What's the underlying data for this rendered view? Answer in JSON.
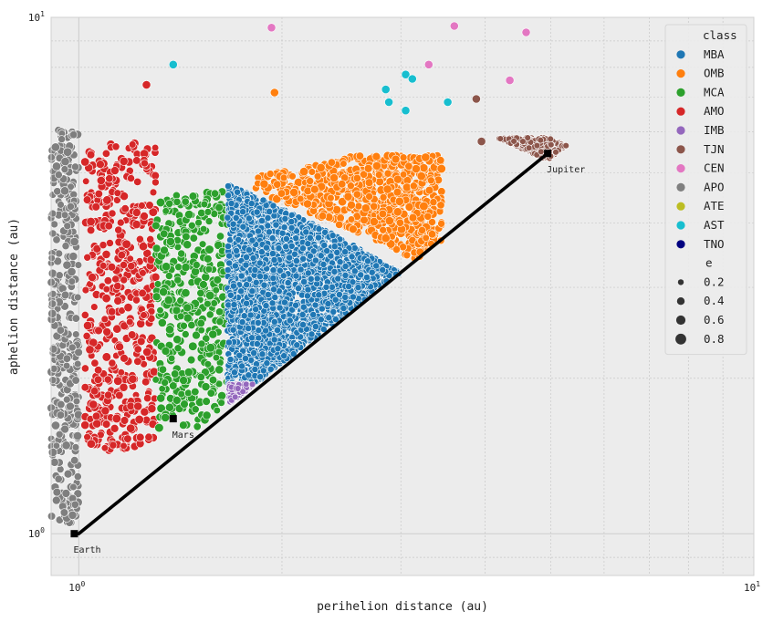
{
  "chart_data": {
    "type": "scatter",
    "xlabel": "perihelion distance (au)",
    "ylabel": "aphelion distance (au)",
    "xscale": "log",
    "yscale": "log",
    "xlim": [
      0.91,
      10
    ],
    "ylim": [
      0.83,
      10
    ],
    "grid": true,
    "background": "#ececec",
    "x_ticks": [
      {
        "value": 1,
        "base": "10",
        "exp": "0"
      },
      {
        "value": 10,
        "base": "10",
        "exp": "1"
      }
    ],
    "y_ticks": [
      {
        "value": 1,
        "base": "10",
        "exp": "0"
      },
      {
        "value": 10,
        "base": "10",
        "exp": "1"
      }
    ],
    "line": {
      "points": [
        [
          1.0,
          1.0
        ],
        [
          4.95,
          5.45
        ]
      ],
      "color": "#000000"
    },
    "annotations": [
      {
        "label": "Earth",
        "x": 0.985,
        "y": 1.0
      },
      {
        "label": "Mars",
        "x": 1.38,
        "y": 1.67
      },
      {
        "label": "Jupiter",
        "x": 4.95,
        "y": 5.45
      }
    ],
    "legend": {
      "placement": "upper right",
      "hue_title": "class",
      "classes": [
        {
          "name": "MBA",
          "color": "#1f77b4"
        },
        {
          "name": "OMB",
          "color": "#ff7f0e"
        },
        {
          "name": "MCA",
          "color": "#2ca02c"
        },
        {
          "name": "AMO",
          "color": "#d62728"
        },
        {
          "name": "IMB",
          "color": "#9467bd"
        },
        {
          "name": "TJN",
          "color": "#8c564b"
        },
        {
          "name": "CEN",
          "color": "#e377c2"
        },
        {
          "name": "APO",
          "color": "#7f7f7f"
        },
        {
          "name": "ATE",
          "color": "#bcbd22"
        },
        {
          "name": "AST",
          "color": "#17becf"
        },
        {
          "name": "TNO",
          "color": "#000080"
        }
      ],
      "size_title": "e",
      "sizes": [
        "0.2",
        "0.4",
        "0.6",
        "0.8"
      ]
    },
    "regions": [
      {
        "class": "MBA",
        "q": [
          1.66,
          3.05
        ],
        "Q": [
          1.83,
          4.75
        ],
        "count": 2600
      },
      {
        "class": "OMB",
        "q": [
          1.82,
          3.45
        ],
        "Q": [
          3.05,
          5.4
        ],
        "count": 700
      },
      {
        "class": "MCA",
        "q": [
          1.3,
          1.66
        ],
        "Q": [
          1.6,
          4.6
        ],
        "count": 420
      },
      {
        "class": "AMO",
        "q": [
          1.02,
          1.3
        ],
        "Q": [
          1.45,
          5.7
        ],
        "count": 520
      },
      {
        "class": "APO",
        "q": [
          0.91,
          1.0
        ],
        "Q": [
          1.05,
          6.1
        ],
        "count": 380
      },
      {
        "class": "IMB",
        "q": [
          1.67,
          1.92
        ],
        "Q": [
          1.7,
          1.95
        ],
        "count": 160
      },
      {
        "class": "TJN",
        "q": [
          4.0,
          5.3
        ],
        "Q": [
          5.2,
          5.85
        ],
        "count": 330
      }
    ],
    "points": [
      {
        "class": "CEN",
        "x": 1.93,
        "y": 9.55
      },
      {
        "class": "CEN",
        "x": 3.6,
        "y": 9.62
      },
      {
        "class": "CEN",
        "x": 4.6,
        "y": 9.35
      },
      {
        "class": "CEN",
        "x": 3.3,
        "y": 8.1
      },
      {
        "class": "CEN",
        "x": 4.35,
        "y": 7.55
      },
      {
        "class": "AST",
        "x": 1.38,
        "y": 8.1
      },
      {
        "class": "AST",
        "x": 2.85,
        "y": 7.25
      },
      {
        "class": "AST",
        "x": 3.05,
        "y": 7.75
      },
      {
        "class": "AST",
        "x": 3.12,
        "y": 7.6
      },
      {
        "class": "AST",
        "x": 2.88,
        "y": 6.85
      },
      {
        "class": "AST",
        "x": 3.05,
        "y": 6.6
      },
      {
        "class": "AST",
        "x": 3.52,
        "y": 6.85
      },
      {
        "class": "AMO",
        "x": 1.26,
        "y": 7.4
      },
      {
        "class": "OMB",
        "x": 1.95,
        "y": 7.15
      },
      {
        "class": "TJN",
        "x": 3.88,
        "y": 6.95
      },
      {
        "class": "TJN",
        "x": 3.95,
        "y": 5.75
      }
    ]
  }
}
